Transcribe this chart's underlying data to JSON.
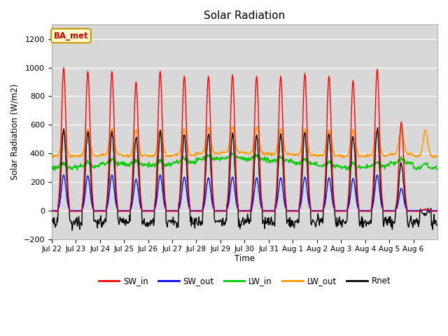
{
  "title": "Solar Radiation",
  "ylabel": "Solar Radiation (W/m2)",
  "xlabel": "Time",
  "ylim": [
    -200,
    1300
  ],
  "yticks": [
    -200,
    0,
    200,
    400,
    600,
    800,
    1000,
    1200
  ],
  "station_label": "BA_met",
  "x_tick_labels": [
    "Jul 22",
    "Jul 23",
    "Jul 24",
    "Jul 25",
    "Jul 26",
    "Jul 27",
    "Jul 28",
    "Jul 29",
    "Jul 30",
    "Jul 31",
    "Aug 1",
    "Aug 2",
    "Aug 3",
    "Aug 4",
    "Aug 5",
    "Aug 6"
  ],
  "n_days": 16,
  "sw_in_peaks": [
    1000,
    975,
    975,
    900,
    975,
    940,
    940,
    950,
    940,
    940,
    960,
    940,
    910,
    990,
    620,
    10
  ],
  "sw_out_peaks": [
    250,
    245,
    250,
    220,
    250,
    235,
    230,
    235,
    230,
    230,
    235,
    230,
    225,
    250,
    155,
    5
  ],
  "lw_in_base": [
    300,
    310,
    330,
    320,
    320,
    340,
    360,
    370,
    360,
    350,
    330,
    310,
    300,
    310,
    330,
    300
  ],
  "lw_out_base": [
    380,
    385,
    390,
    385,
    385,
    390,
    400,
    405,
    400,
    395,
    390,
    385,
    380,
    385,
    395,
    380
  ],
  "colors": {
    "SW_in": "#ff0000",
    "SW_out": "#0000ff",
    "LW_in": "#00cc00",
    "LW_out": "#ff9900",
    "Rnet": "#000000"
  },
  "line_widths": {
    "SW_in": 1.0,
    "SW_out": 1.0,
    "LW_in": 1.2,
    "LW_out": 1.2,
    "Rnet": 1.0
  }
}
